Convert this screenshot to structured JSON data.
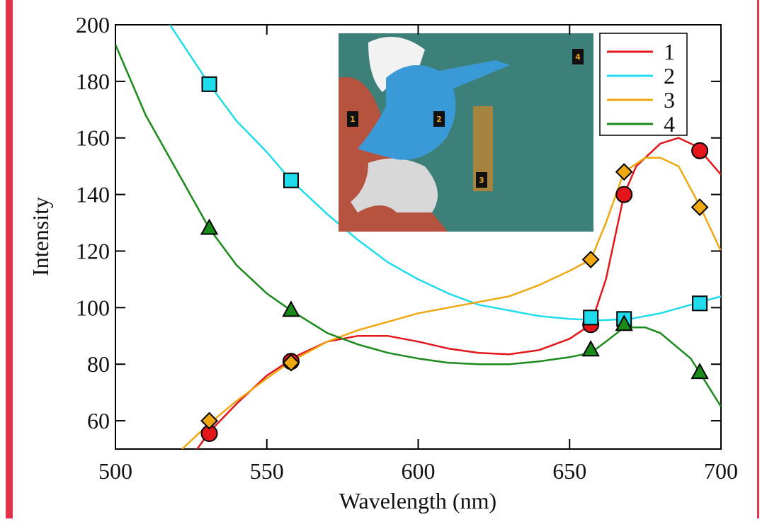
{
  "chart_data": {
    "type": "line",
    "xlabel": "Wavelength (nm)",
    "ylabel": "Intensity",
    "x": [
      531,
      558,
      657,
      668,
      693
    ],
    "xlim": [
      500,
      700
    ],
    "xticks": [
      500,
      550,
      600,
      650,
      700
    ],
    "ylim": [
      50,
      200
    ],
    "yticks": [
      60,
      80,
      100,
      120,
      140,
      160,
      180,
      200
    ],
    "legend": "top-right",
    "series": [
      {
        "name": "1",
        "color": "#e3161b",
        "marker": "circle",
        "values": [
          55.5,
          81,
          94,
          140,
          155.5
        ],
        "fit": {
          "x": [
            527,
            531,
            540,
            550,
            560,
            570,
            580,
            590,
            600,
            610,
            620,
            630,
            640,
            650,
            657,
            662,
            665,
            668,
            672,
            680,
            686,
            692,
            700
          ],
          "values": [
            50,
            56,
            66,
            76,
            83,
            88,
            90,
            90,
            88,
            85.5,
            84,
            83.5,
            85,
            89,
            94,
            110,
            125,
            140,
            150,
            158,
            160,
            157,
            147
          ]
        }
      },
      {
        "name": "2",
        "color": "#1fdcec",
        "marker": "square",
        "values": [
          179,
          145,
          96.5,
          96,
          101.5
        ],
        "fit": {
          "x": [
            518,
            531,
            540,
            550,
            558,
            570,
            580,
            590,
            600,
            610,
            620,
            630,
            640,
            650,
            660,
            670,
            680,
            690,
            700
          ],
          "values": [
            200,
            179,
            166,
            155,
            145,
            133,
            124,
            116,
            110,
            105,
            101,
            99,
            97,
            96,
            95.5,
            96,
            98,
            101,
            104
          ]
        }
      },
      {
        "name": "3",
        "color": "#f0a810",
        "marker": "diamond",
        "values": [
          60,
          80.5,
          117,
          148,
          135.5
        ],
        "fit": {
          "x": [
            522,
            531,
            540,
            550,
            558,
            570,
            580,
            590,
            600,
            610,
            620,
            630,
            640,
            650,
            657,
            662,
            668,
            675,
            680,
            686,
            693,
            700
          ],
          "values": [
            50,
            59,
            67,
            75,
            81,
            88,
            92,
            95,
            98,
            100,
            102,
            104,
            108,
            113,
            117,
            130,
            148,
            153,
            153,
            150,
            136,
            120
          ]
        }
      },
      {
        "name": "4",
        "color": "#1a8a1a",
        "marker": "triangle",
        "values": [
          128,
          99,
          85,
          94,
          77
        ],
        "fit": {
          "x": [
            500,
            510,
            520,
            531,
            540,
            550,
            558,
            570,
            580,
            590,
            600,
            610,
            620,
            630,
            640,
            650,
            657,
            662,
            668,
            675,
            680,
            690,
            693,
            700
          ],
          "values": [
            193,
            168,
            149,
            128,
            115,
            105,
            99,
            91,
            87,
            84,
            82,
            80.5,
            80,
            80,
            81,
            82.5,
            84,
            88,
            93,
            93,
            91,
            82,
            77,
            65
          ]
        }
      }
    ],
    "inset": {
      "labels": [
        "1",
        "2",
        "3",
        "4"
      ]
    }
  }
}
